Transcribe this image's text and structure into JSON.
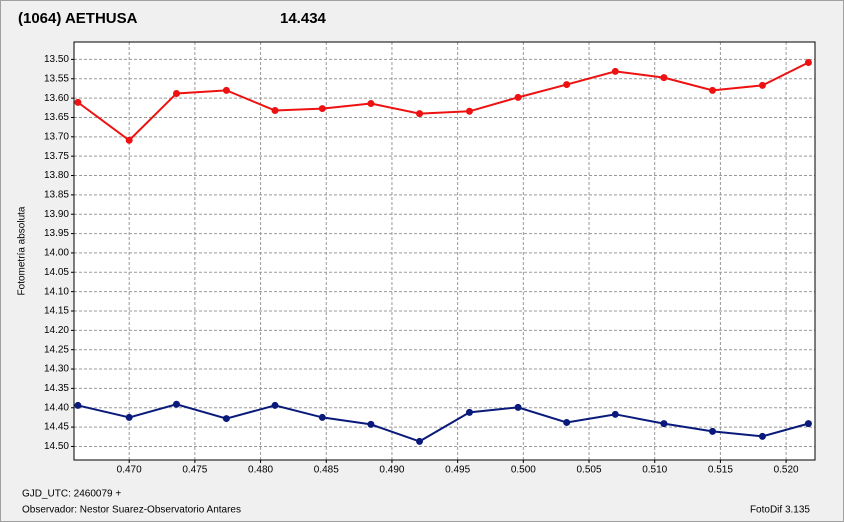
{
  "chart_data": {
    "type": "line",
    "title": "(1064) AETHUSA",
    "subtitle": "14.434",
    "y_label": "Fotometría absoluta",
    "footer_left_1": "GJD_UTC: 2460079 +",
    "footer_left_2": "Observador: Nestor Suarez-Observatorio Antares",
    "footer_right": "FotoDif 3.135",
    "title_color": "#ff0000",
    "subtitle_color": "#1a237e",
    "x": [
      0.4661,
      0.47,
      0.4736,
      0.4774,
      0.4811,
      0.4847,
      0.4884,
      0.4921,
      0.4959,
      0.4996,
      0.5033,
      0.507,
      0.5107,
      0.5144,
      0.5182,
      0.5217
    ],
    "series": [
      {
        "color": "#ee1111",
        "values": [
          13.611,
          13.709,
          13.588,
          13.58,
          13.632,
          13.627,
          13.614,
          13.64,
          13.634,
          13.598,
          13.565,
          13.531,
          13.547,
          13.58,
          13.567,
          13.508
        ]
      },
      {
        "color": "#0a1a7a",
        "values": [
          14.394,
          14.425,
          14.391,
          14.428,
          14.394,
          14.425,
          14.443,
          14.487,
          14.412,
          14.399,
          14.438,
          14.417,
          14.441,
          14.461,
          14.474,
          14.441
        ]
      }
    ],
    "xlim": [
      0.4658,
      0.5222
    ],
    "ylim": [
      13.455,
      14.535
    ],
    "y_inverted": true,
    "grid": true,
    "xticks": [
      {
        "value": 0.47,
        "label": "0.470"
      },
      {
        "value": 0.475,
        "label": "0.475"
      },
      {
        "value": 0.48,
        "label": "0.480"
      },
      {
        "value": 0.485,
        "label": "0.485"
      },
      {
        "value": 0.49,
        "label": "0.490"
      },
      {
        "value": 0.495,
        "label": "0.495"
      },
      {
        "value": 0.5,
        "label": "0.500"
      },
      {
        "value": 0.505,
        "label": "0.505"
      },
      {
        "value": 0.51,
        "label": "0.510"
      },
      {
        "value": 0.515,
        "label": "0.515"
      },
      {
        "value": 0.52,
        "label": "0.520"
      }
    ],
    "yticks": [
      {
        "value": 13.5,
        "label": "13.50"
      },
      13.55,
      {
        "value": 13.6,
        "label": "13.60"
      },
      13.65,
      {
        "value": 13.7,
        "label": "13.70"
      },
      13.75,
      {
        "value": 13.8,
        "label": "13.80"
      },
      13.85,
      {
        "value": 13.9,
        "label": "13.90"
      },
      13.95,
      {
        "value": 14.0,
        "label": "14.00"
      },
      14.05,
      {
        "value": 14.1,
        "label": "14.10"
      },
      14.15,
      {
        "value": 14.2,
        "label": "14.20"
      },
      14.25,
      {
        "value": 14.3,
        "label": "14.30"
      },
      14.35,
      {
        "value": 14.4,
        "label": "14.40"
      },
      14.45,
      {
        "value": 14.5,
        "label": "14.50"
      }
    ]
  }
}
